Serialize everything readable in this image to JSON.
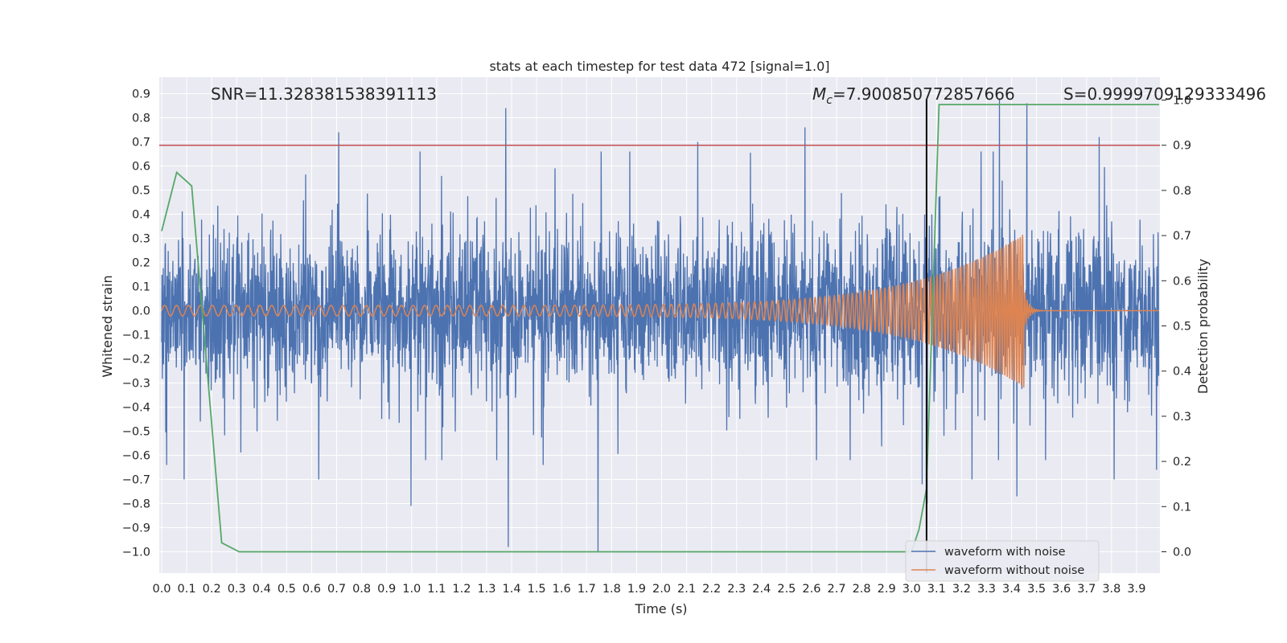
{
  "chart_data": {
    "type": "line",
    "title": "stats at each timestep for test data 472 [signal=1.0]",
    "xlabel": "Time (s)",
    "ylabel": "Whitened strain",
    "y2label": "Detection probability",
    "xlim": [
      0.0,
      4.0
    ],
    "ylim": [
      -1.09,
      0.97
    ],
    "y2lim": [
      -0.05,
      1.06
    ],
    "grid": true,
    "legend_position": "bottom-right",
    "x_ticks": [
      "0.0",
      "0.1",
      "0.2",
      "0.3",
      "0.4",
      "0.5",
      "0.6",
      "0.7",
      "0.8",
      "0.9",
      "1.0",
      "1.1",
      "1.2",
      "1.3",
      "1.4",
      "1.5",
      "1.6",
      "1.7",
      "1.8",
      "1.9",
      "2.0",
      "2.1",
      "2.2",
      "2.3",
      "2.4",
      "2.5",
      "2.6",
      "2.7",
      "2.8",
      "2.9",
      "3.0",
      "3.1",
      "3.2",
      "3.3",
      "3.4",
      "3.5",
      "3.6",
      "3.7",
      "3.8",
      "3.9"
    ],
    "y_ticks": [
      "0.9",
      "0.8",
      "0.7",
      "0.6",
      "0.5",
      "0.4",
      "0.3",
      "0.2",
      "0.1",
      "0.0",
      "−0.1",
      "−0.2",
      "−0.3",
      "−0.4",
      "−0.5",
      "−0.6",
      "−0.7",
      "−0.8",
      "−0.9",
      "−1.0"
    ],
    "y2_ticks": [
      "1.0",
      "0.9",
      "0.8",
      "0.7",
      "0.6",
      "0.5",
      "0.4",
      "0.3",
      "0.2",
      "0.1",
      "0.0"
    ],
    "annotations": {
      "snr": "SNR=11.328381538391113",
      "mc_symbol": "M",
      "mc_sub": "c",
      "mc_value": "=7.900850772857666",
      "s": "S=0.9999709129333496"
    },
    "threshold": {
      "y2": 0.9,
      "color": "#c44e52"
    },
    "merger_time": 3.06,
    "series": [
      {
        "name": "waveform with noise",
        "color": "#4c72b0",
        "axis": "left",
        "description": "whitened strain noise, std ~0.18, spikes",
        "spikes": [
          [
            0.02,
            -0.64
          ],
          [
            0.09,
            -0.7
          ],
          [
            0.71,
            0.74
          ],
          [
            0.63,
            -0.7
          ],
          [
            1.0,
            -0.81
          ],
          [
            1.38,
            0.84
          ],
          [
            1.39,
            -0.98
          ],
          [
            1.53,
            -0.64
          ],
          [
            1.75,
            -1.0
          ],
          [
            2.15,
            0.7
          ],
          [
            2.58,
            0.76
          ],
          [
            3.05,
            -0.72
          ],
          [
            3.07,
            -0.8
          ],
          [
            3.25,
            -0.7
          ],
          [
            3.36,
            0.88
          ],
          [
            3.43,
            -0.77
          ],
          [
            3.47,
            0.86
          ],
          [
            3.76,
            0.72
          ],
          [
            3.82,
            -0.7
          ],
          [
            3.99,
            -0.66
          ]
        ]
      },
      {
        "name": "waveform without noise",
        "color": "#dd8452",
        "axis": "left",
        "chirp": {
          "f0": 21,
          "f1": 110,
          "end": 3.45,
          "amp0": 0.022,
          "ampEnd": 0.32
        }
      },
      {
        "name": "detection probability",
        "color": "#55a868",
        "axis": "right",
        "x": [
          0.0,
          0.06,
          0.12,
          0.24,
          0.31,
          3.0,
          3.03,
          3.06,
          3.11,
          3.99
        ],
        "y": [
          0.71,
          0.84,
          0.81,
          0.02,
          0.0,
          0.0,
          0.05,
          0.14,
          0.99,
          0.99
        ]
      }
    ]
  }
}
